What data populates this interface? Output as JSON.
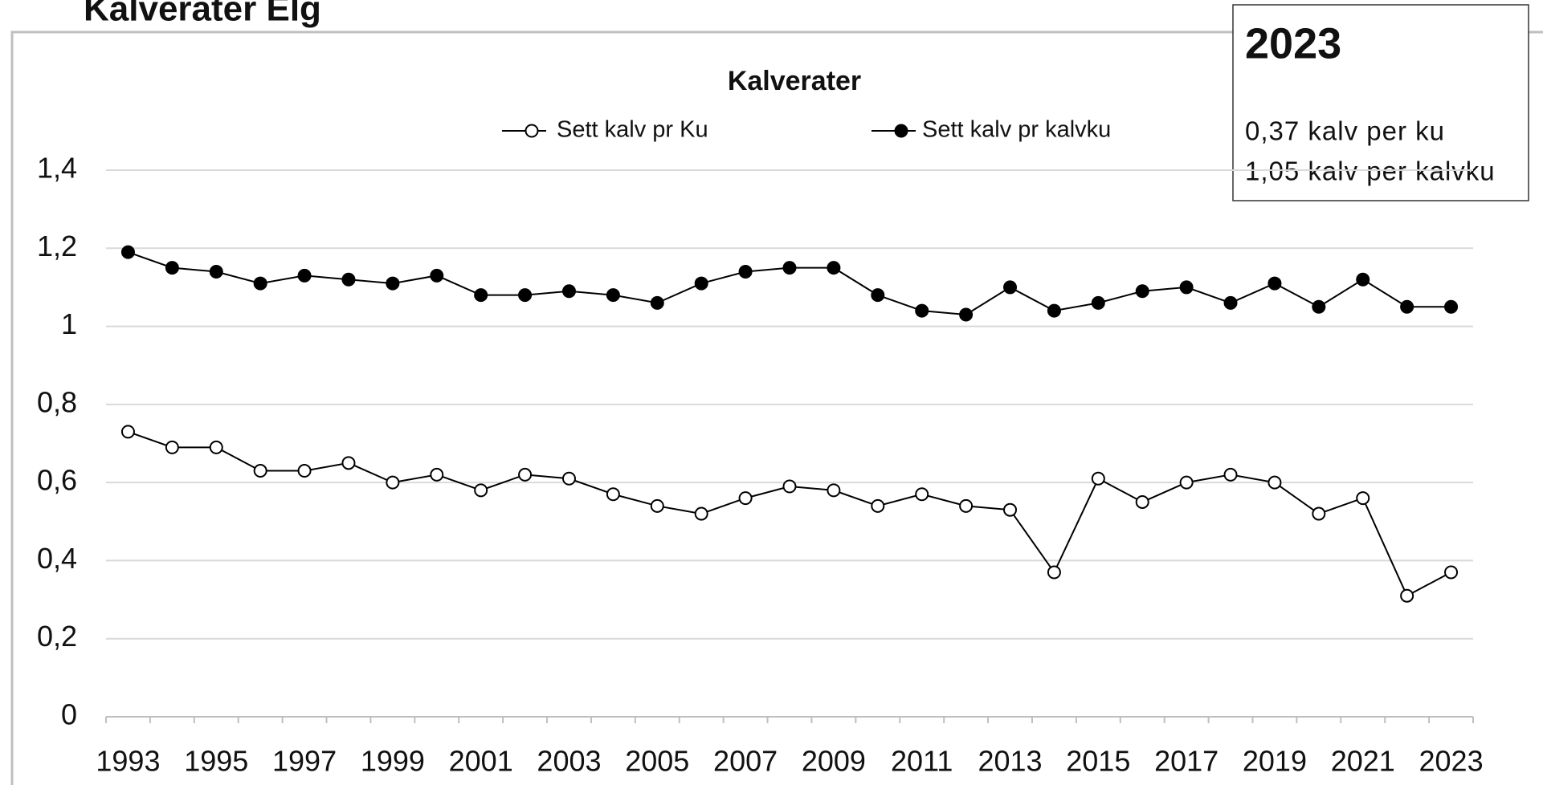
{
  "page_title": "Kalverater Elg",
  "info_box": {
    "title": "2023",
    "lines": [
      "0,37 kalv per ku",
      "1,05 kalv per kalvku"
    ]
  },
  "chart_data": {
    "type": "line",
    "title": "Kalverater",
    "categories": [
      "1993",
      null,
      "1995",
      null,
      "1997",
      null,
      "1999",
      null,
      "2001",
      null,
      "2003",
      null,
      "2005",
      null,
      "2007",
      null,
      "2009",
      null,
      "2011",
      null,
      "2013",
      null,
      "2015",
      null,
      "2017",
      null,
      "2019",
      null,
      "2021",
      null,
      "2023"
    ],
    "series": [
      {
        "name": "Sett kalv pr Ku",
        "color": "#000000",
        "marker": "open",
        "values": [
          0.73,
          0.69,
          0.69,
          0.63,
          0.63,
          0.65,
          0.6,
          0.62,
          0.58,
          0.62,
          0.61,
          0.57,
          0.54,
          0.52,
          0.56,
          0.59,
          0.58,
          0.54,
          0.57,
          0.54,
          0.53,
          0.37,
          0.61,
          0.55,
          0.6,
          0.62,
          0.6,
          0.52,
          0.56,
          0.31,
          0.37
        ]
      },
      {
        "name": "Sett kalv pr kalvku",
        "color": "#000000",
        "marker": "filled",
        "values": [
          1.19,
          1.15,
          1.14,
          1.11,
          1.13,
          1.12,
          1.11,
          1.13,
          1.08,
          1.08,
          1.09,
          1.08,
          1.06,
          1.11,
          1.14,
          1.15,
          1.15,
          1.08,
          1.04,
          1.03,
          1.1,
          1.04,
          1.06,
          1.09,
          1.1,
          1.06,
          1.11,
          1.05,
          1.12,
          1.05,
          1.05
        ]
      }
    ],
    "ylim": [
      0,
      1.4
    ],
    "yticks": [
      0,
      {
        "value": 0.2,
        "label": "0,2"
      },
      {
        "value": 0.4,
        "label": "0,4"
      },
      {
        "value": 0.6,
        "label": "0,6"
      },
      {
        "value": 0.8,
        "label": "0,8"
      },
      1,
      {
        "value": 1.2,
        "label": "1,2"
      },
      {
        "value": 1.4,
        "label": "1,4"
      }
    ],
    "grid": true,
    "legend": "top"
  }
}
